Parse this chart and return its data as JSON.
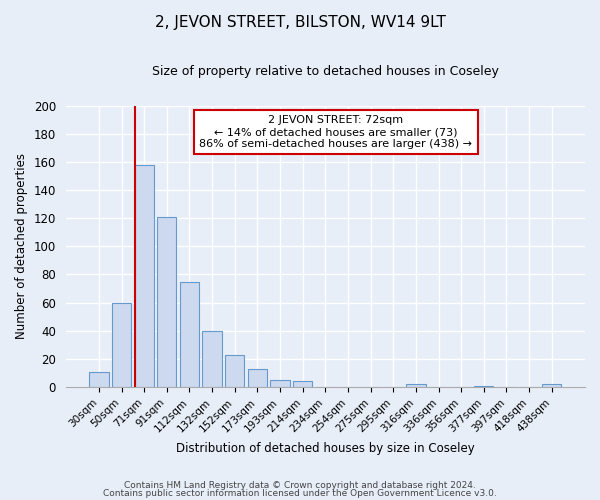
{
  "title": "2, JEVON STREET, BILSTON, WV14 9LT",
  "subtitle": "Size of property relative to detached houses in Coseley",
  "xlabel": "Distribution of detached houses by size in Coseley",
  "ylabel": "Number of detached properties",
  "bar_labels": [
    "30sqm",
    "50sqm",
    "71sqm",
    "91sqm",
    "112sqm",
    "132sqm",
    "152sqm",
    "173sqm",
    "193sqm",
    "214sqm",
    "234sqm",
    "254sqm",
    "275sqm",
    "295sqm",
    "316sqm",
    "336sqm",
    "356sqm",
    "377sqm",
    "397sqm",
    "418sqm",
    "438sqm"
  ],
  "bar_values": [
    11,
    60,
    158,
    121,
    75,
    40,
    23,
    13,
    5,
    4,
    0,
    0,
    0,
    0,
    2,
    0,
    0,
    1,
    0,
    0,
    2
  ],
  "bar_color": "#ccd9ef",
  "bar_edge_color": "#6699cc",
  "vline_color": "#cc0000",
  "annotation_title": "2 JEVON STREET: 72sqm",
  "annotation_line1": "← 14% of detached houses are smaller (73)",
  "annotation_line2": "86% of semi-detached houses are larger (438) →",
  "annotation_box_color": "#ffffff",
  "annotation_box_edge": "#cc0000",
  "ylim": [
    0,
    200
  ],
  "yticks": [
    0,
    20,
    40,
    60,
    80,
    100,
    120,
    140,
    160,
    180,
    200
  ],
  "footer1": "Contains HM Land Registry data © Crown copyright and database right 2024.",
  "footer2": "Contains public sector information licensed under the Open Government Licence v3.0.",
  "bg_color": "#e8eef8",
  "grid_color": "#ffffff",
  "title_fontsize": 11,
  "subtitle_fontsize": 9
}
